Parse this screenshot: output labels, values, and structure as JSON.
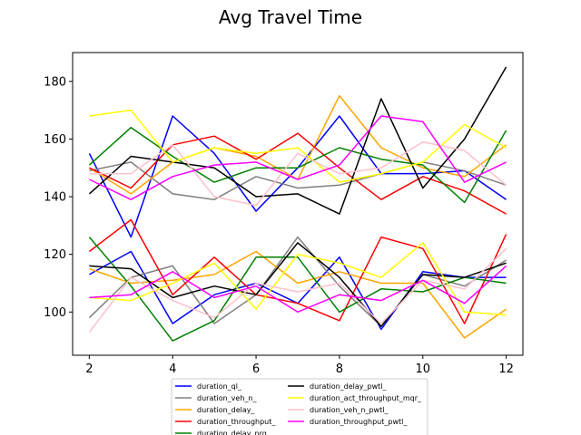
{
  "chart_data": {
    "type": "line",
    "title": "Avg Travel Time",
    "xlabel": "",
    "ylabel": "",
    "x": [
      2,
      3,
      4,
      5,
      6,
      7,
      8,
      9,
      10,
      11,
      12
    ],
    "xticks": [
      2,
      4,
      6,
      8,
      10,
      12
    ],
    "yticks": [
      100,
      120,
      140,
      160,
      180
    ],
    "xlim": [
      1.6,
      12.4
    ],
    "ylim": [
      85,
      190
    ],
    "grid": false,
    "legend_position": "bottom-center",
    "series": [
      {
        "name": "duration_ql_",
        "color": "#0000ff",
        "group": "upper",
        "values": [
          155,
          126,
          168,
          155,
          135,
          150,
          168,
          148,
          148,
          149,
          139
        ]
      },
      {
        "name": "duration_ql_",
        "color": "#0000ff",
        "group": "lower",
        "values": [
          113,
          121,
          96,
          106,
          110,
          103,
          119,
          94,
          114,
          112,
          112
        ]
      },
      {
        "name": "duration_veh_n_",
        "color": "#808080",
        "group": "upper",
        "values": [
          149,
          152,
          141,
          139,
          147,
          143,
          144,
          148,
          152,
          149,
          144
        ]
      },
      {
        "name": "duration_veh_n_",
        "color": "#808080",
        "group": "lower",
        "values": [
          98,
          112,
          116,
          96,
          106,
          126,
          109,
          95,
          113,
          109,
          118
        ]
      },
      {
        "name": "duration_delay_",
        "color": "#ffa500",
        "group": "upper",
        "values": [
          150,
          141,
          152,
          157,
          154,
          146,
          175,
          157,
          150,
          147,
          158
        ]
      },
      {
        "name": "duration_delay_",
        "color": "#ffa500",
        "group": "lower",
        "values": [
          115,
          110,
          111,
          113,
          121,
          110,
          114,
          110,
          110,
          91,
          101
        ]
      },
      {
        "name": "duration_throughput_",
        "color": "#ff0000",
        "group": "upper",
        "values": [
          150,
          143,
          158,
          161,
          153,
          162,
          150,
          139,
          147,
          142,
          134
        ]
      },
      {
        "name": "duration_throughput_",
        "color": "#ff0000",
        "group": "lower",
        "values": [
          121,
          132,
          106,
          119,
          106,
          103,
          97,
          126,
          122,
          96,
          127
        ]
      },
      {
        "name": "duration_delay_prg",
        "color": "#008000",
        "group": "upper",
        "values": [
          151,
          164,
          154,
          145,
          150,
          150,
          157,
          153,
          151,
          138,
          163
        ]
      },
      {
        "name": "duration_delay_prg",
        "color": "#008000",
        "group": "lower",
        "values": [
          126,
          109,
          90,
          97,
          119,
          119,
          100,
          108,
          107,
          112,
          110
        ]
      },
      {
        "name": "duration_delay_pwtl_",
        "color": "#000000",
        "group": "upper",
        "values": [
          141,
          154,
          152,
          150,
          140,
          141,
          134,
          174,
          143,
          160,
          185
        ]
      },
      {
        "name": "duration_delay_pwtl_",
        "color": "#000000",
        "group": "lower",
        "values": [
          116,
          115,
          105,
          109,
          106,
          124,
          112,
          95,
          113,
          112,
          117
        ]
      },
      {
        "name": "duration_act_throughput_mqr_",
        "color": "#ffff00",
        "group": "upper",
        "values": [
          168,
          170,
          152,
          157,
          155,
          157,
          145,
          148,
          152,
          165,
          157
        ]
      },
      {
        "name": "duration_act_throughput_mqr_",
        "color": "#ffff00",
        "group": "lower",
        "values": [
          105,
          104,
          110,
          117,
          101,
          120,
          117,
          112,
          124,
          100,
          99
        ]
      },
      {
        "name": "duration_veh_n_pwtl_",
        "color": "#ffc0cb",
        "group": "upper",
        "values": [
          148,
          148,
          158,
          140,
          137,
          155,
          148,
          150,
          159,
          156,
          144
        ]
      },
      {
        "name": "duration_veh_n_pwtl_",
        "color": "#ffc0cb",
        "group": "lower",
        "values": [
          93,
          112,
          104,
          98,
          110,
          107,
          110,
          96,
          111,
          108,
          122
        ]
      },
      {
        "name": "duration_throughput_pwtl_",
        "color": "#ff00ff",
        "group": "upper",
        "values": [
          146,
          139,
          147,
          151,
          152,
          146,
          151,
          168,
          166,
          145,
          152
        ]
      },
      {
        "name": "duration_throughput_pwtl_",
        "color": "#ff00ff",
        "group": "lower",
        "values": [
          105,
          106,
          114,
          105,
          109,
          100,
          106,
          104,
          111,
          103,
          116
        ]
      }
    ],
    "legend": [
      {
        "name": "duration_ql_",
        "color": "#0000ff"
      },
      {
        "name": "duration_veh_n_",
        "color": "#808080"
      },
      {
        "name": "duration_delay_",
        "color": "#ffa500"
      },
      {
        "name": "duration_throughput_",
        "color": "#ff0000"
      },
      {
        "name": "duration_delay_prg",
        "color": "#008000"
      },
      {
        "name": "duration_delay_pwtl_",
        "color": "#000000"
      },
      {
        "name": "duration_act_throughput_mqr_",
        "color": "#ffff00"
      },
      {
        "name": "duration_veh_n_pwtl_",
        "color": "#ffc0cb"
      },
      {
        "name": "duration_throughput_pwtl_",
        "color": "#ff00ff"
      }
    ]
  }
}
